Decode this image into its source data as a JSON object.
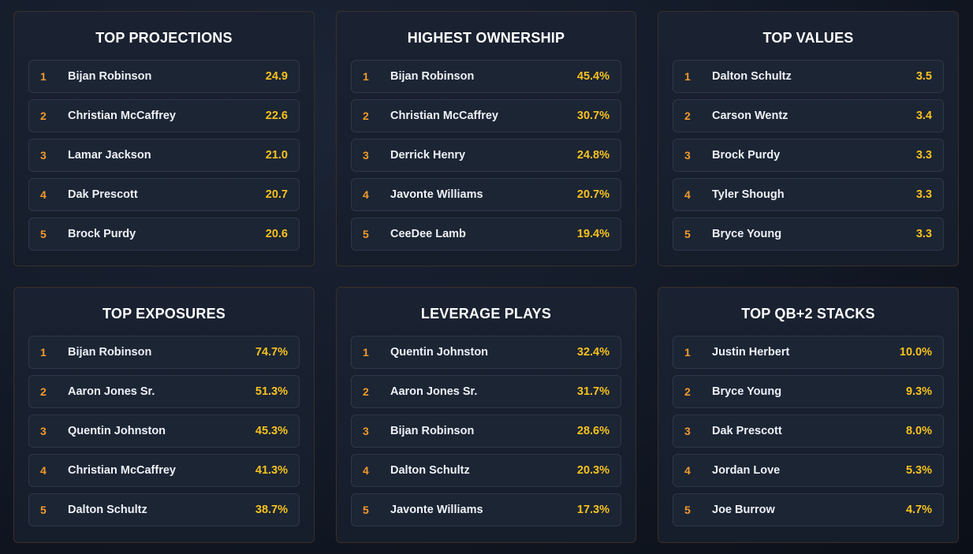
{
  "colors": {
    "rank": "#f39a2b",
    "value": "#f7c21d",
    "card_border": "#3a2f27",
    "background": "#141b29"
  },
  "cards": [
    {
      "title": "TOP PROJECTIONS",
      "items": [
        {
          "rank": "1",
          "name": "Bijan Robinson",
          "value": "24.9"
        },
        {
          "rank": "2",
          "name": "Christian McCaffrey",
          "value": "22.6"
        },
        {
          "rank": "3",
          "name": "Lamar Jackson",
          "value": "21.0"
        },
        {
          "rank": "4",
          "name": "Dak Prescott",
          "value": "20.7"
        },
        {
          "rank": "5",
          "name": "Brock Purdy",
          "value": "20.6"
        }
      ]
    },
    {
      "title": "HIGHEST OWNERSHIP",
      "items": [
        {
          "rank": "1",
          "name": "Bijan Robinson",
          "value": "45.4%"
        },
        {
          "rank": "2",
          "name": "Christian McCaffrey",
          "value": "30.7%"
        },
        {
          "rank": "3",
          "name": "Derrick Henry",
          "value": "24.8%"
        },
        {
          "rank": "4",
          "name": "Javonte Williams",
          "value": "20.7%"
        },
        {
          "rank": "5",
          "name": "CeeDee Lamb",
          "value": "19.4%"
        }
      ]
    },
    {
      "title": "TOP VALUES",
      "items": [
        {
          "rank": "1",
          "name": "Dalton Schultz",
          "value": "3.5"
        },
        {
          "rank": "2",
          "name": "Carson Wentz",
          "value": "3.4"
        },
        {
          "rank": "3",
          "name": "Brock Purdy",
          "value": "3.3"
        },
        {
          "rank": "4",
          "name": "Tyler Shough",
          "value": "3.3"
        },
        {
          "rank": "5",
          "name": "Bryce Young",
          "value": "3.3"
        }
      ]
    },
    {
      "title": "TOP EXPOSURES",
      "items": [
        {
          "rank": "1",
          "name": "Bijan Robinson",
          "value": "74.7%"
        },
        {
          "rank": "2",
          "name": "Aaron Jones Sr.",
          "value": "51.3%"
        },
        {
          "rank": "3",
          "name": "Quentin Johnston",
          "value": "45.3%"
        },
        {
          "rank": "4",
          "name": "Christian McCaffrey",
          "value": "41.3%"
        },
        {
          "rank": "5",
          "name": "Dalton Schultz",
          "value": "38.7%"
        }
      ]
    },
    {
      "title": "LEVERAGE PLAYS",
      "items": [
        {
          "rank": "1",
          "name": "Quentin Johnston",
          "value": "32.4%"
        },
        {
          "rank": "2",
          "name": "Aaron Jones Sr.",
          "value": "31.7%"
        },
        {
          "rank": "3",
          "name": "Bijan Robinson",
          "value": "28.6%"
        },
        {
          "rank": "4",
          "name": "Dalton Schultz",
          "value": "20.3%"
        },
        {
          "rank": "5",
          "name": "Javonte Williams",
          "value": "17.3%"
        }
      ]
    },
    {
      "title": "TOP QB+2 STACKS",
      "items": [
        {
          "rank": "1",
          "name": "Justin Herbert",
          "value": "10.0%"
        },
        {
          "rank": "2",
          "name": "Bryce Young",
          "value": "9.3%"
        },
        {
          "rank": "3",
          "name": "Dak Prescott",
          "value": "8.0%"
        },
        {
          "rank": "4",
          "name": "Jordan Love",
          "value": "5.3%"
        },
        {
          "rank": "5",
          "name": "Joe Burrow",
          "value": "4.7%"
        }
      ]
    }
  ]
}
